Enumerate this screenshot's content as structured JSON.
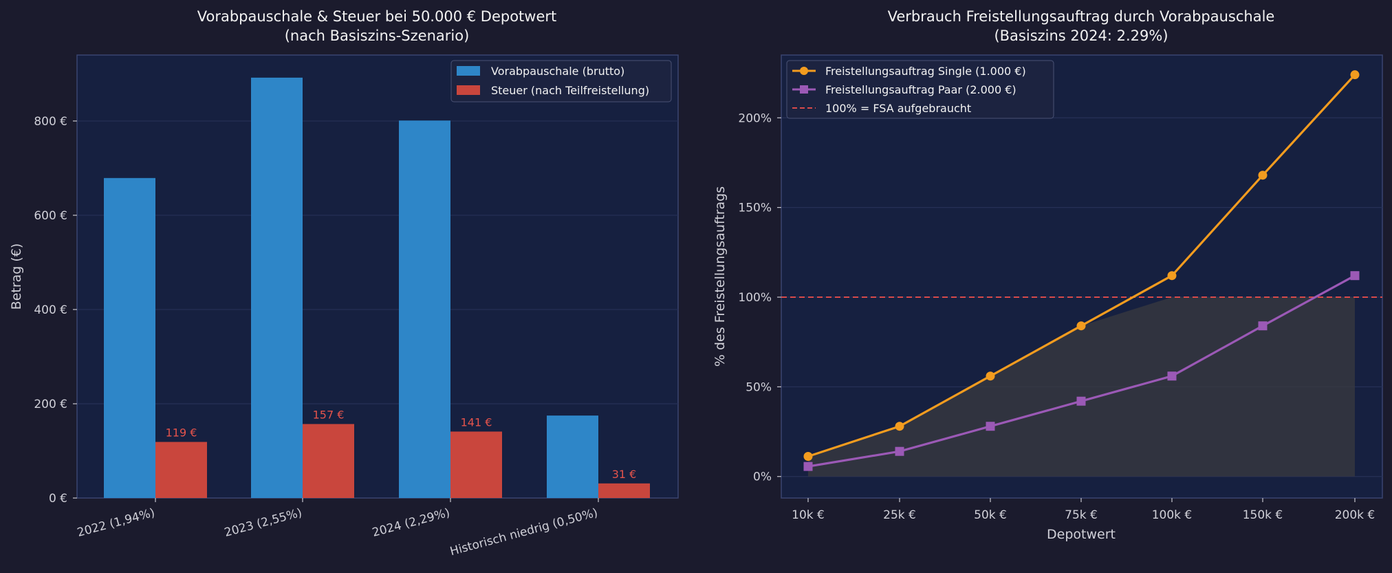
{
  "chart_data": [
    {
      "type": "bar",
      "title": "Vorabpauschale & Steuer bei 50.000 € Depotwert",
      "subtitle": "(nach Basiszins-Szenario)",
      "xlabel": "",
      "ylabel": "Betrag (€)",
      "ylim": [
        0,
        940
      ],
      "yticks": [
        0,
        200,
        400,
        600,
        800
      ],
      "ytick_labels": [
        "0 €",
        "200 €",
        "400 €",
        "600 €",
        "800 €"
      ],
      "categories": [
        "2022 (1,94%)",
        "2023 (2,55%)",
        "2024 (2,29%)",
        "Historisch niedrig (0,50%)"
      ],
      "series": [
        {
          "name": "Vorabpauschale (brutto)",
          "color": "#2e86c8",
          "values": [
            679,
            892,
            801,
            175
          ]
        },
        {
          "name": "Steuer (nach Teilfreistellung)",
          "color": "#c9463d",
          "values": [
            119,
            157,
            141,
            31
          ]
        }
      ],
      "data_labels": [
        "119 €",
        "157 €",
        "141 €",
        "31 €"
      ],
      "legend": "top-right",
      "grid": true
    },
    {
      "type": "line",
      "title": "Verbrauch Freistellungsauftrag durch Vorabpauschale",
      "subtitle": "(Basiszins 2024: 2.29%)",
      "xlabel": "Depotwert",
      "ylabel": "% des Freistellungsauftrags",
      "categories": [
        "10k €",
        "25k €",
        "50k €",
        "75k €",
        "100k €",
        "150k €",
        "200k €"
      ],
      "ylim": [
        -12,
        235
      ],
      "yticks": [
        0,
        50,
        100,
        150,
        200
      ],
      "ytick_labels": [
        "0%",
        "50%",
        "100%",
        "150%",
        "200%"
      ],
      "series": [
        {
          "name": "Freistellungsauftrag Single (1.000 €)",
          "color": "#f39c1f",
          "marker": "circle",
          "values": [
            11.2,
            28,
            56,
            84,
            112,
            168,
            224
          ]
        },
        {
          "name": "Freistellungsauftrag Paar (2.000 €)",
          "color": "#9b59b6",
          "marker": "square",
          "values": [
            5.6,
            14,
            28,
            42,
            56,
            84,
            112
          ]
        }
      ],
      "reference_line": {
        "label": "100% = FSA aufgebraucht",
        "value": 100,
        "color": "#d94a4a"
      },
      "legend": "top-left",
      "grid": true
    }
  ]
}
